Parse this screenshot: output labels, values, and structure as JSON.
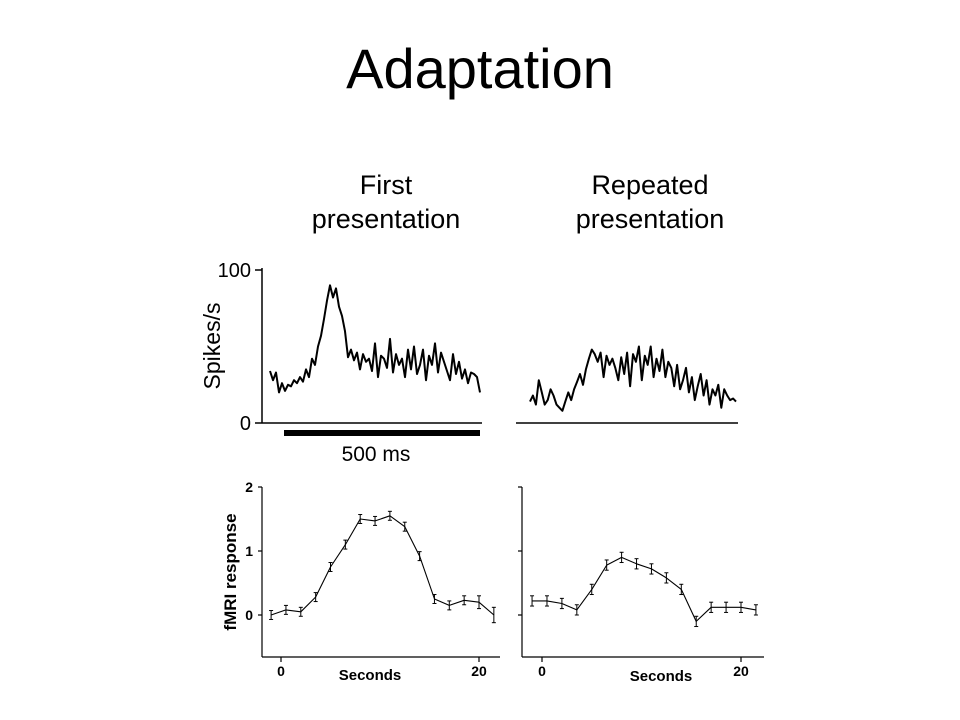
{
  "title": "Adaptation",
  "columns": {
    "first": [
      "First",
      "presentation"
    ],
    "repeated": [
      "Repeated",
      "presentation"
    ]
  },
  "chart_data": [
    {
      "type": "line",
      "panel": "spikes-first",
      "ylabel": "Spikes/s",
      "ylim": [
        0,
        100
      ],
      "yticks": [
        "0",
        "100"
      ],
      "scale_bar_label": "500 ms",
      "x": [
        0,
        1,
        2,
        3,
        4,
        5,
        6,
        7,
        8,
        9,
        10,
        11,
        12,
        13,
        14,
        15,
        16,
        17,
        18,
        19,
        20,
        21,
        22,
        23,
        24,
        25,
        26,
        27,
        28,
        29,
        30,
        31,
        32,
        33,
        34,
        35,
        36,
        37,
        38,
        39,
        40,
        41,
        42,
        43,
        44,
        45,
        46,
        47,
        48,
        49,
        50,
        51,
        52,
        53,
        54,
        55,
        56,
        57,
        58,
        59,
        60,
        61,
        62,
        63,
        64,
        65,
        66,
        67,
        68,
        69,
        70
      ],
      "values": [
        34,
        28,
        33,
        20,
        26,
        21,
        25,
        24,
        28,
        26,
        30,
        27,
        35,
        30,
        42,
        38,
        50,
        57,
        68,
        80,
        90,
        82,
        88,
        76,
        70,
        60,
        43,
        48,
        41,
        46,
        35,
        45,
        40,
        42,
        34,
        52,
        30,
        44,
        42,
        36,
        55,
        33,
        45,
        38,
        42,
        30,
        48,
        35,
        50,
        32,
        38,
        48,
        28,
        44,
        38,
        52,
        33,
        46,
        40,
        34,
        28,
        45,
        32,
        40,
        29,
        35,
        26,
        33,
        32,
        30,
        20
      ],
      "grid": false
    },
    {
      "type": "line",
      "panel": "spikes-repeated",
      "ylim": [
        0,
        100
      ],
      "x": [
        0,
        1,
        2,
        3,
        4,
        5,
        6,
        7,
        8,
        9,
        10,
        11,
        12,
        13,
        14,
        15,
        16,
        17,
        18,
        19,
        20,
        21,
        22,
        23,
        24,
        25,
        26,
        27,
        28,
        29,
        30,
        31,
        32,
        33,
        34,
        35,
        36,
        37,
        38,
        39,
        40,
        41,
        42,
        43,
        44,
        45,
        46,
        47,
        48,
        49,
        50,
        51,
        52,
        53,
        54,
        55,
        56,
        57,
        58,
        59,
        60,
        61,
        62,
        63,
        64,
        65,
        66,
        67,
        68,
        69,
        70
      ],
      "values": [
        14,
        18,
        12,
        28,
        20,
        12,
        15,
        22,
        18,
        12,
        10,
        8,
        14,
        20,
        15,
        22,
        27,
        32,
        25,
        35,
        42,
        48,
        45,
        40,
        46,
        30,
        44,
        38,
        42,
        36,
        28,
        43,
        32,
        46,
        24,
        45,
        40,
        50,
        28,
        44,
        38,
        50,
        30,
        42,
        34,
        48,
        30,
        40,
        36,
        24,
        38,
        22,
        28,
        36,
        20,
        30,
        15,
        24,
        32,
        18,
        28,
        12,
        22,
        18,
        25,
        10,
        22,
        18,
        15,
        16,
        14
      ],
      "grid": false
    },
    {
      "type": "line",
      "panel": "fmri-first",
      "ylabel": "fMRI response",
      "xlabel": "Seconds",
      "ylim": [
        0,
        2
      ],
      "yticks": [
        "0",
        "1",
        "2"
      ],
      "xticks": [
        "0",
        "20"
      ],
      "x": [
        -1,
        0.5,
        2,
        3.5,
        5,
        6.5,
        8,
        9.5,
        11,
        12.5,
        14,
        15.5,
        17,
        18.5,
        20,
        21.5
      ],
      "values": [
        0.0,
        0.08,
        0.05,
        0.28,
        0.75,
        1.1,
        1.5,
        1.47,
        1.55,
        1.38,
        0.92,
        0.25,
        0.15,
        0.23,
        0.2,
        0.0
      ],
      "errors": [
        0.07,
        0.07,
        0.07,
        0.07,
        0.07,
        0.07,
        0.07,
        0.07,
        0.07,
        0.07,
        0.07,
        0.07,
        0.07,
        0.07,
        0.1,
        0.12
      ],
      "grid": false
    },
    {
      "type": "line",
      "panel": "fmri-repeated",
      "xlabel": "Seconds",
      "ylim": [
        0,
        2
      ],
      "xticks": [
        "0",
        "20"
      ],
      "x": [
        -1,
        0.5,
        2,
        3.5,
        5,
        6.5,
        8,
        9.5,
        11,
        12.5,
        14,
        15.5,
        17,
        18.5,
        20,
        21.5
      ],
      "values": [
        0.22,
        0.22,
        0.18,
        0.08,
        0.4,
        0.78,
        0.9,
        0.8,
        0.72,
        0.58,
        0.4,
        -0.1,
        0.12,
        0.12,
        0.12,
        0.08
      ],
      "errors": [
        0.08,
        0.08,
        0.08,
        0.08,
        0.08,
        0.08,
        0.08,
        0.08,
        0.08,
        0.08,
        0.08,
        0.08,
        0.08,
        0.08,
        0.08,
        0.08
      ],
      "grid": false
    }
  ]
}
